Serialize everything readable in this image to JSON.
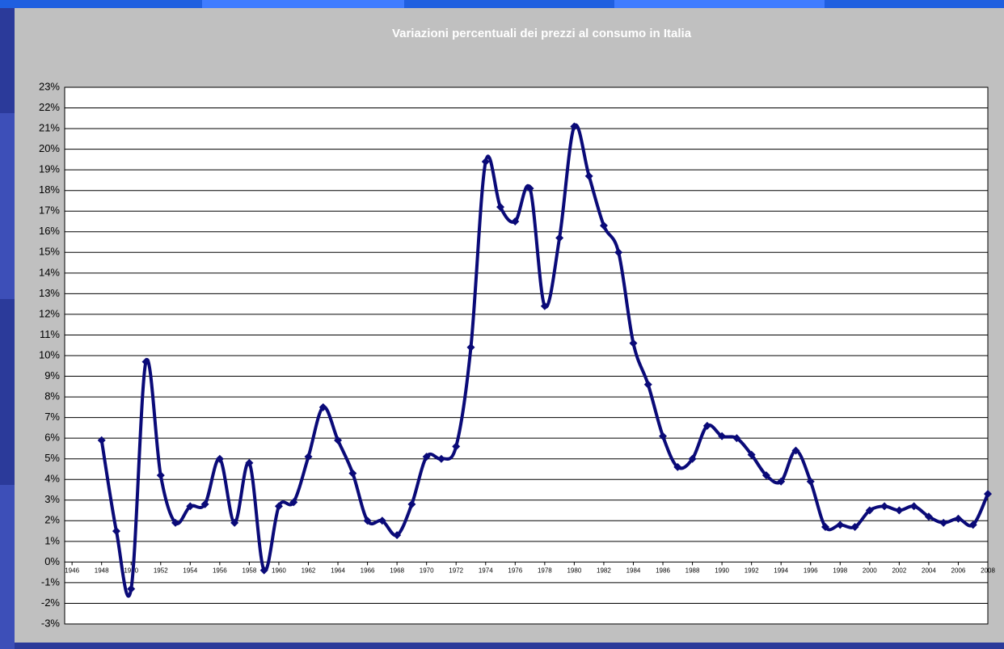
{
  "chart_data": {
    "type": "line",
    "title": "Variazioni percentuali dei prezzi al consumo in Italia",
    "x": [
      1948,
      1949,
      1950,
      1951,
      1952,
      1953,
      1954,
      1955,
      1956,
      1957,
      1958,
      1959,
      1960,
      1961,
      1962,
      1963,
      1964,
      1965,
      1966,
      1967,
      1968,
      1969,
      1970,
      1971,
      1972,
      1973,
      1974,
      1975,
      1976,
      1977,
      1978,
      1979,
      1980,
      1981,
      1982,
      1983,
      1984,
      1985,
      1986,
      1987,
      1988,
      1989,
      1990,
      1991,
      1992,
      1993,
      1994,
      1995,
      1996,
      1997,
      1998,
      1999,
      2000,
      2001,
      2002,
      2003,
      2004,
      2005,
      2006,
      2007,
      2008
    ],
    "series": [
      {
        "color": "#0a0a78",
        "values": [
          5.9,
          1.5,
          -1.3,
          9.7,
          4.2,
          1.9,
          2.7,
          2.8,
          5.0,
          1.9,
          4.8,
          -0.4,
          2.7,
          2.9,
          5.1,
          7.5,
          5.9,
          4.3,
          2.0,
          2.0,
          1.3,
          2.8,
          5.1,
          5.0,
          5.6,
          10.4,
          19.4,
          17.2,
          16.5,
          18.1,
          12.4,
          15.7,
          21.1,
          18.7,
          16.3,
          15.0,
          10.6,
          8.6,
          6.1,
          4.6,
          5.0,
          6.6,
          6.1,
          6.0,
          5.2,
          4.2,
          3.9,
          5.4,
          3.9,
          1.7,
          1.8,
          1.7,
          2.5,
          2.7,
          2.5,
          2.7,
          2.2,
          1.9,
          2.1,
          1.8,
          3.3
        ]
      }
    ],
    "xlim": [
      1945.5,
      2008
    ],
    "xticks": [
      1946,
      1948,
      1950,
      1952,
      1954,
      1956,
      1958,
      1960,
      1962,
      1964,
      1966,
      1968,
      1970,
      1972,
      1974,
      1976,
      1978,
      1980,
      1982,
      1984,
      1986,
      1988,
      1990,
      1992,
      1994,
      1996,
      1998,
      2000,
      2002,
      2004,
      2006,
      2008
    ],
    "ylim": [
      -3,
      23
    ],
    "yticks": [
      {
        "value": -3,
        "label": "-3%"
      },
      {
        "value": -2,
        "label": "-2%"
      },
      {
        "value": -1,
        "label": "-1%"
      },
      {
        "value": 0,
        "label": "0%"
      },
      {
        "value": 1,
        "label": "1%"
      },
      {
        "value": 2,
        "label": "2%"
      },
      {
        "value": 3,
        "label": "3%"
      },
      {
        "value": 4,
        "label": "4%"
      },
      {
        "value": 5,
        "label": "5%"
      },
      {
        "value": 6,
        "label": "6%"
      },
      {
        "value": 7,
        "label": "7%"
      },
      {
        "value": 8,
        "label": "8%"
      },
      {
        "value": 9,
        "label": "9%"
      },
      {
        "value": 10,
        "label": "10%"
      },
      {
        "value": 11,
        "label": "11%"
      },
      {
        "value": 12,
        "label": "12%"
      },
      {
        "value": 13,
        "label": "13%"
      },
      {
        "value": 14,
        "label": "14%"
      },
      {
        "value": 15,
        "label": "15%"
      },
      {
        "value": 16,
        "label": "16%"
      },
      {
        "value": 17,
        "label": "17%"
      },
      {
        "value": 18,
        "label": "18%"
      },
      {
        "value": 19,
        "label": "19%"
      },
      {
        "value": 20,
        "label": "20%"
      },
      {
        "value": 21,
        "label": "21%"
      },
      {
        "value": 22,
        "label": "22%"
      },
      {
        "value": 23,
        "label": "23%"
      }
    ],
    "grid": true
  }
}
